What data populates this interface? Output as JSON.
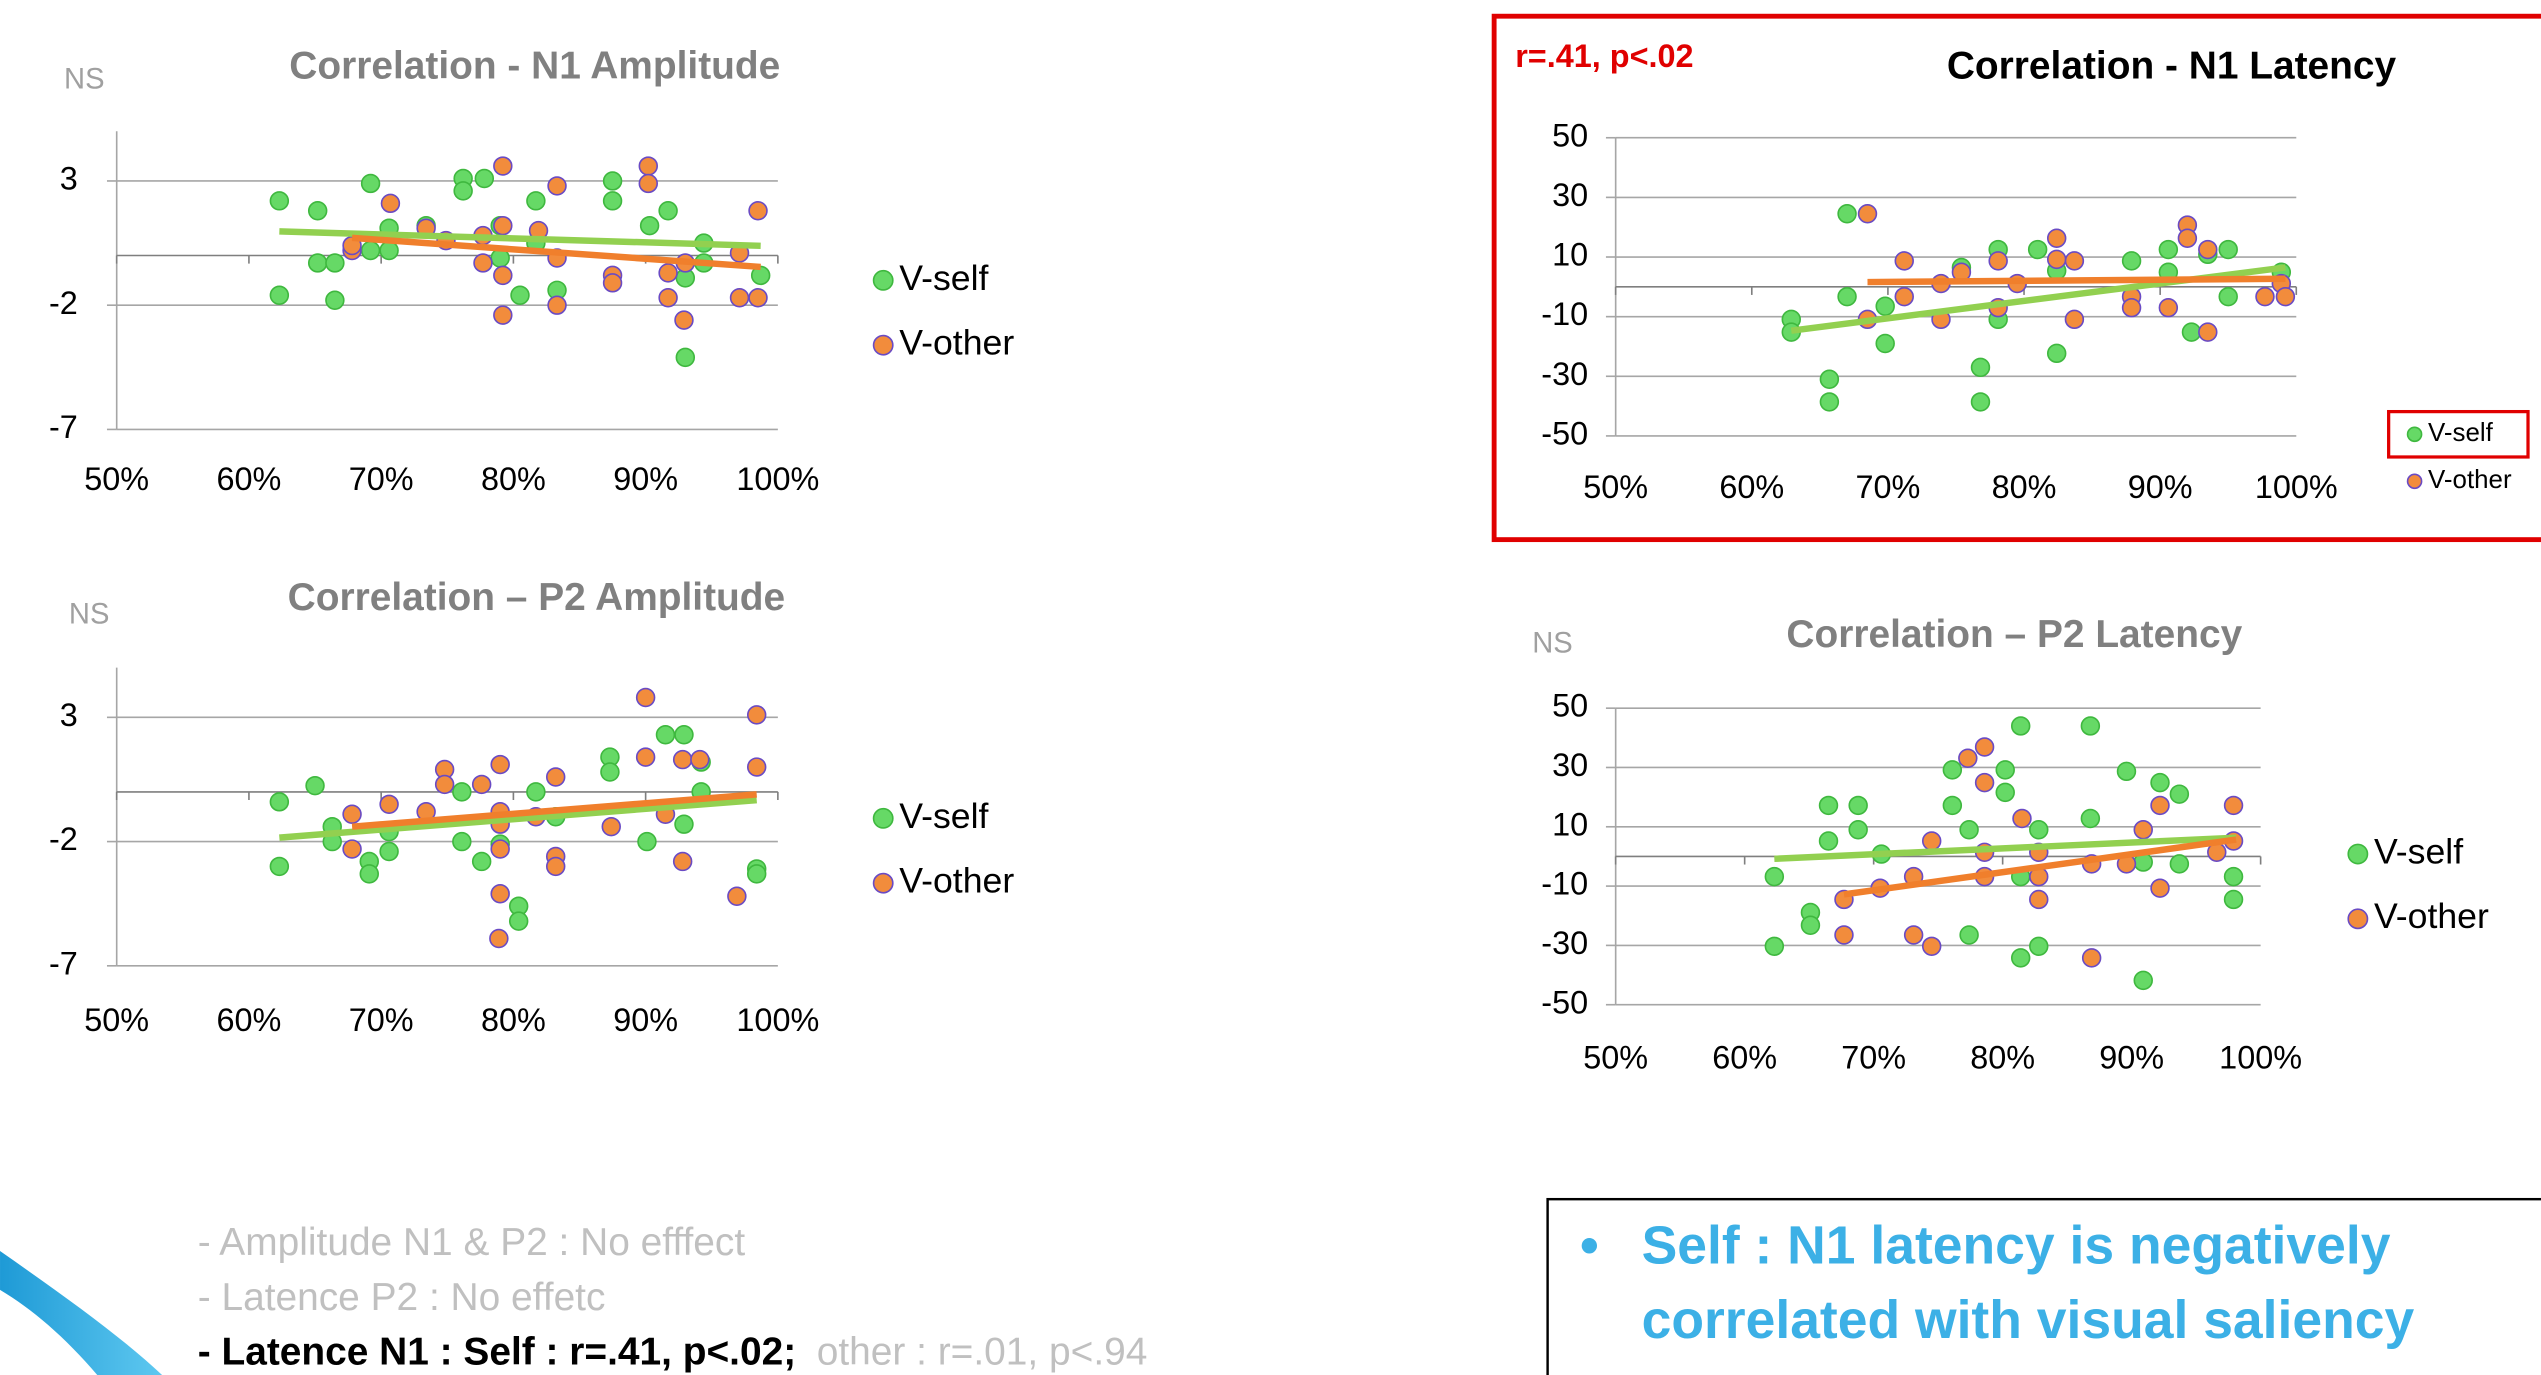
{
  "chart_data": [
    {
      "type": "scatter",
      "title": "Correlation - N1 Amplitude",
      "title_color": "#808080",
      "note": "NS",
      "xlim": [
        50,
        100
      ],
      "xticks": [
        {
          "value": 50,
          "label": "50%"
        },
        {
          "value": 60,
          "label": "60%"
        },
        {
          "value": 70,
          "label": "70%"
        },
        {
          "value": 80,
          "label": "80%"
        },
        {
          "value": 90,
          "label": "90%"
        },
        {
          "value": 100,
          "label": "100%"
        }
      ],
      "ylim": [
        -7,
        5
      ],
      "yticks": [
        -7,
        -2,
        3
      ],
      "grid": true,
      "series": [
        {
          "name": "V-self",
          "color": "#66d966",
          "edge": "#3fb83f",
          "trend_color": "#92d050",
          "x": [
            62.3,
            62.3,
            65.2,
            65.2,
            66.5,
            66.5,
            69.2,
            69.2,
            70.6,
            70.6,
            73.4,
            76.2,
            76.2,
            77.8,
            79.0,
            79.0,
            80.5,
            81.7,
            81.7,
            83.3,
            87.5,
            87.5,
            90.3,
            91.7,
            93.0,
            93.0,
            94.4,
            94.4,
            98.7
          ],
          "values": [
            2.2,
            -1.6,
            1.8,
            -0.3,
            -0.3,
            -1.8,
            2.9,
            0.2,
            0.2,
            1.1,
            1.2,
            3.1,
            2.6,
            3.1,
            1.2,
            -0.1,
            -1.6,
            2.2,
            0.5,
            -1.4,
            3.0,
            2.2,
            1.2,
            1.8,
            -0.9,
            -4.1,
            0.5,
            -0.3,
            -0.8
          ],
          "trend_x": [
            62.3,
            98.7
          ],
          "trend_y": [
            0.97,
            0.39
          ]
        },
        {
          "name": "V-other",
          "color": "#f28c3c",
          "edge": "#6a4bc4",
          "trend_color": "#f07f2c",
          "x": [
            67.8,
            67.8,
            70.7,
            73.4,
            74.9,
            77.7,
            77.7,
            79.2,
            79.2,
            79.2,
            79.2,
            81.9,
            83.3,
            83.3,
            83.3,
            87.5,
            87.5,
            90.2,
            90.2,
            91.7,
            91.7,
            92.9,
            93.0,
            97.1,
            97.1,
            98.5,
            98.5
          ],
          "values": [
            0.2,
            0.4,
            2.1,
            1.1,
            0.6,
            0.8,
            -0.3,
            3.6,
            1.2,
            -0.8,
            -2.4,
            1.0,
            2.8,
            -0.1,
            -2.0,
            -0.8,
            -1.1,
            3.6,
            2.9,
            -0.7,
            -1.7,
            -2.6,
            -0.3,
            0.1,
            -1.7,
            1.8,
            -1.7
          ],
          "trend_x": [
            67.8,
            98.7
          ],
          "trend_y": [
            0.71,
            -0.46
          ]
        }
      ]
    },
    {
      "type": "scatter",
      "title": "Correlation – P2 Amplitude",
      "title_color": "#808080",
      "note": "NS",
      "xlim": [
        50,
        100
      ],
      "xticks": [
        {
          "value": 50,
          "label": "50%"
        },
        {
          "value": 60,
          "label": "60%"
        },
        {
          "value": 70,
          "label": "70%"
        },
        {
          "value": 80,
          "label": "80%"
        },
        {
          "value": 90,
          "label": "90%"
        },
        {
          "value": 100,
          "label": "100%"
        }
      ],
      "ylim": [
        -7,
        5
      ],
      "yticks": [
        -7,
        -2,
        3
      ],
      "grid": true,
      "series": [
        {
          "name": "V-self",
          "color": "#66d966",
          "edge": "#3fb83f",
          "trend_color": "#92d050",
          "x": [
            62.3,
            62.3,
            65.0,
            66.3,
            66.3,
            69.1,
            69.1,
            70.6,
            70.6,
            76.1,
            76.1,
            77.6,
            79.0,
            80.4,
            80.4,
            81.7,
            83.2,
            87.3,
            87.3,
            90.1,
            91.5,
            92.9,
            92.9,
            94.2,
            94.2,
            98.4,
            98.4
          ],
          "values": [
            -0.4,
            -3.0,
            0.25,
            -1.4,
            -2.0,
            -2.8,
            -3.3,
            -2.4,
            -1.6,
            0.0,
            -2.0,
            -2.8,
            -2.1,
            -4.6,
            -5.2,
            0.0,
            -1.0,
            1.4,
            0.8,
            -2.0,
            2.3,
            2.3,
            -1.3,
            1.2,
            0.0,
            -3.1,
            -3.3
          ],
          "trend_x": [
            62.3,
            98.4
          ],
          "trend_y": [
            -1.84,
            -0.33
          ]
        },
        {
          "name": "V-other",
          "color": "#f28c3c",
          "edge": "#6a4bc4",
          "trend_color": "#f07f2c",
          "x": [
            67.8,
            67.8,
            70.6,
            73.4,
            74.8,
            74.8,
            77.6,
            79.0,
            79.0,
            79.0,
            79.0,
            79.0,
            78.9,
            81.7,
            83.2,
            83.2,
            83.2,
            87.4,
            90.0,
            90.0,
            91.5,
            92.8,
            92.8,
            94.1,
            96.9,
            98.4,
            98.4
          ],
          "values": [
            -0.9,
            -2.3,
            -0.5,
            -0.8,
            0.9,
            0.3,
            0.3,
            1.1,
            -0.8,
            -1.3,
            -2.3,
            -4.1,
            -5.9,
            -1.0,
            0.6,
            -2.6,
            -3.0,
            -1.4,
            3.8,
            1.4,
            -0.9,
            1.3,
            -2.8,
            1.3,
            -4.2,
            1.0,
            3.1
          ],
          "trend_x": [
            67.8,
            98.4
          ],
          "trend_y": [
            -1.4,
            -0.1
          ]
        }
      ]
    },
    {
      "type": "scatter",
      "title": "Correlation - N1 Latency",
      "title_color": "#000000",
      "annotation": "r=.41, p<.02",
      "annotation_color": "#e00000",
      "frame_color": "#e00000",
      "xlim": [
        50,
        100
      ],
      "xticks": [
        {
          "value": 50,
          "label": "50%"
        },
        {
          "value": 60,
          "label": "60%"
        },
        {
          "value": 70,
          "label": "70%"
        },
        {
          "value": 80,
          "label": "80%"
        },
        {
          "value": 90,
          "label": "90%"
        },
        {
          "value": 100,
          "label": "100%"
        }
      ],
      "ylim": [
        -50,
        50
      ],
      "yticks": [
        -50,
        -30,
        -10,
        10,
        30,
        50
      ],
      "grid": true,
      "series": [
        {
          "name": "V-self",
          "color": "#66d966",
          "edge": "#3fb83f",
          "trend_color": "#92d050",
          "legend_box": "#e00000",
          "x": [
            62.9,
            62.9,
            65.7,
            65.7,
            67.0,
            67.0,
            69.8,
            69.8,
            75.4,
            76.8,
            76.8,
            78.1,
            78.1,
            81.0,
            82.4,
            82.4,
            87.9,
            90.6,
            90.6,
            92.3,
            93.5,
            95.0,
            95.0,
            98.9
          ],
          "values": [
            -10.9,
            -15.2,
            -31,
            -38.6,
            -3.3,
            24.5,
            -6.5,
            -19,
            6.5,
            -27,
            -38.6,
            12.5,
            -10.9,
            12.5,
            -22.3,
            5.4,
            8.7,
            12.5,
            4.9,
            -15.2,
            10.9,
            -3.3,
            12.5,
            4.9
          ],
          "trend_x": [
            62.9,
            99.2
          ],
          "trend_y": [
            -14.7,
            6.5
          ]
        },
        {
          "name": "V-other",
          "color": "#f28c3c",
          "edge": "#6a4bc4",
          "trend_color": "#f07f2c",
          "x": [
            68.5,
            68.5,
            71.2,
            71.2,
            73.9,
            73.9,
            75.4,
            78.1,
            78.1,
            79.5,
            82.4,
            82.4,
            83.7,
            83.7,
            87.9,
            87.9,
            90.6,
            92.0,
            92.0,
            93.5,
            93.5,
            97.7,
            98.9,
            99.2
          ],
          "values": [
            24.5,
            -10.9,
            8.7,
            -3.3,
            1.1,
            -10.9,
            4.9,
            8.7,
            -7,
            1.1,
            16.3,
            9.2,
            8.7,
            -10.9,
            -3.3,
            -7,
            -7,
            20.7,
            16.3,
            12.5,
            -15.2,
            -3.3,
            1.1,
            -3.3
          ],
          "trend_x": [
            68.5,
            99.2
          ],
          "trend_y": [
            1.6,
            2.7
          ]
        }
      ]
    },
    {
      "type": "scatter",
      "title": "Correlation – P2 Latency",
      "title_color": "#808080",
      "note": "NS",
      "xlim": [
        50,
        100
      ],
      "xticks": [
        {
          "value": 50,
          "label": "50%"
        },
        {
          "value": 60,
          "label": "60%"
        },
        {
          "value": 70,
          "label": "70%"
        },
        {
          "value": 80,
          "label": "80%"
        },
        {
          "value": 90,
          "label": "90%"
        },
        {
          "value": 100,
          "label": "100%"
        }
      ],
      "ylim": [
        -50,
        50
      ],
      "yticks": [
        -50,
        -30,
        -10,
        10,
        30,
        50
      ],
      "grid": true,
      "series": [
        {
          "name": "V-self",
          "color": "#66d966",
          "edge": "#3fb83f",
          "trend_color": "#92d050",
          "x": [
            62.3,
            62.3,
            65.1,
            65.1,
            66.5,
            66.5,
            68.8,
            68.8,
            70.6,
            76.1,
            76.1,
            77.4,
            77.4,
            80.2,
            80.2,
            81.4,
            81.4,
            82.8,
            82.8,
            81.4,
            86.8,
            86.8,
            89.6,
            90.9,
            92.2,
            93.7,
            93.7,
            90.9,
            97.9,
            97.9
          ],
          "values": [
            -30.3,
            -6.8,
            -18.9,
            -23.2,
            17.2,
            5.2,
            17.2,
            9.0,
            0.8,
            29.2,
            17.2,
            9.0,
            -26.5,
            29.2,
            21.6,
            44,
            -6.8,
            9.0,
            -30.3,
            -34.2,
            44,
            12.8,
            28.7,
            -1.9,
            24.9,
            21.0,
            -2.5,
            -41.8,
            -6.8,
            -14.5
          ],
          "trend_x": [
            62.3,
            98.1
          ],
          "trend_y": [
            -0.8,
            6.3
          ]
        },
        {
          "name": "V-other",
          "color": "#f28c3c",
          "edge": "#6a4bc4",
          "trend_color": "#f07f2c",
          "x": [
            67.7,
            67.7,
            70.5,
            73.1,
            74.5,
            73.1,
            74.5,
            77.3,
            78.6,
            78.6,
            78.6,
            78.6,
            81.5,
            82.8,
            82.8,
            82.8,
            86.9,
            86.9,
            89.6,
            90.9,
            92.2,
            92.2,
            96.6,
            97.9,
            97.9
          ],
          "values": [
            -14.5,
            -26.5,
            -10.7,
            -6.8,
            5.2,
            -26.5,
            -30.3,
            33.1,
            36.9,
            24.9,
            1.4,
            -6.8,
            12.8,
            1.4,
            -6.8,
            -14.5,
            -34.2,
            -2.5,
            -2.5,
            9.0,
            17.2,
            -10.7,
            1.4,
            17.2,
            5.2
          ],
          "trend_x": [
            67.7,
            98.1
          ],
          "trend_y": [
            -12.8,
            5.7
          ]
        }
      ]
    }
  ],
  "notes": [
    "- Amplitude N1 & P2 : No efffect",
    "- Latence P2 : No effetc"
  ],
  "result": {
    "bold": "- Latence N1 : Self : r=.41, p<.02;",
    "rest": "other : r=.01, p<.94"
  },
  "callout": {
    "bullet": "•",
    "lines": [
      "Self : N1 latency is negatively",
      "correlated with visual saliency"
    ]
  }
}
